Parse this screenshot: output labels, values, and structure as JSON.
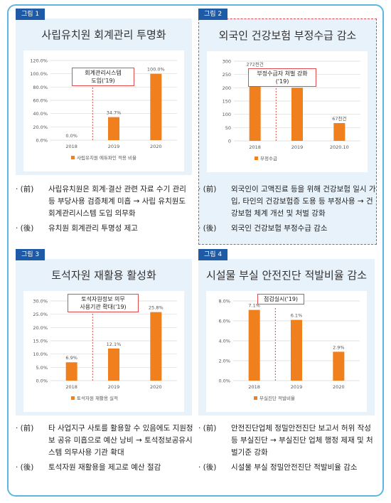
{
  "panels": [
    {
      "tag": "그림 1",
      "title": "사립유치원 회계관리 투명화",
      "annotation_lines": [
        "회계관리시스템",
        "도입('19)"
      ],
      "bullets": [
        {
          "mark": "· (前)",
          "text": "사립유치원은 회계·결산 관련 자료 수기 관리 등 부당사용 검증체계 미흡 → 사립 유치원도 회계관리시스템 도입 의무화"
        },
        {
          "mark": "· (後)",
          "text": "유치원 회계관리 투명성 제고"
        }
      ]
    },
    {
      "tag": "그림 2",
      "title": "외국인 건강보험 부정수급 감소",
      "annotation_lines": [
        "부정수급자 처벌 강화",
        "('19)"
      ],
      "bullets": [
        {
          "mark": "· (前)",
          "text": "외국인이 고액진료 등을 위해 건강보험 일시 가입, 타인의 건강보험증 도용 등 부정사용 → 건강보험 체계 개선 및 처벌 강화"
        },
        {
          "mark": "· (後)",
          "text": "외국인 건강보험 부정수급 감소"
        }
      ]
    },
    {
      "tag": "그림 3",
      "title": "토석자원 재활용 활성화",
      "annotation_lines": [
        "토석자원정보 의무",
        "사용기관 확대('19)"
      ],
      "bullets": [
        {
          "mark": "· (前)",
          "text": "타 사업지구 사토를 활용할 수 있음에도 지원정보 공유 미흡으로 예산 낭비 → 토석정보공유시스템 의무사용 기관 확대"
        },
        {
          "mark": "· (後)",
          "text": "토석자원 재활용을 제고로 예산 절감"
        }
      ]
    },
    {
      "tag": "그림 4",
      "title": "시설물 부실 안전진단 적발비율 감소",
      "annotation_lines": [
        "점검실시('19)"
      ],
      "bullets": [
        {
          "mark": "· (前)",
          "text": "안전진단업체 정밀안전진단 보고서 허위 작성 등 부실진단 → 부실진단 업체 행정 제재 및 처벌기준 강화"
        },
        {
          "mark": "· (後)",
          "text": "시설물 부실 정밀안전진단 적발비율 감소"
        }
      ]
    }
  ],
  "chart_data": [
    {
      "type": "bar",
      "categories": [
        "2018",
        "2019",
        "2020"
      ],
      "series": [
        {
          "name": "사립유치원 에듀파인 적용 비율",
          "values": [
            0.0,
            34.7,
            100.0
          ]
        }
      ],
      "data_labels": [
        "0.0%",
        "34.7%",
        "100.0%"
      ],
      "yticks": [
        "0.0%",
        "20.0%",
        "40.0%",
        "60.0%",
        "80.0%",
        "100.0%",
        "120.0%"
      ],
      "ylim": [
        0,
        120
      ],
      "color": "#f07f1e",
      "divider_after": 0,
      "legend": "bottom"
    },
    {
      "type": "bar",
      "categories": [
        "2018",
        "2019",
        "2020.10"
      ],
      "series": [
        {
          "name": "부정수급",
          "values": [
            272,
            200,
            67
          ]
        }
      ],
      "data_labels": [
        "272천건",
        "200천건",
        "67천건"
      ],
      "yticks": [
        "0",
        "50",
        "100",
        "150",
        "200",
        "250",
        "300"
      ],
      "ylim": [
        0,
        300
      ],
      "color": "#f07f1e",
      "divider_after": 0,
      "legend": "bottom"
    },
    {
      "type": "bar",
      "categories": [
        "2018",
        "2019",
        "2020"
      ],
      "series": [
        {
          "name": "토석자원 재활용 실적",
          "values": [
            6.9,
            12.1,
            25.8
          ]
        }
      ],
      "data_labels": [
        "6.9%",
        "12.1%",
        "25.8%"
      ],
      "yticks": [
        "0.0%",
        "5.0%",
        "10.0%",
        "15.0%",
        "20.0%",
        "25.0%",
        "30.0%"
      ],
      "ylim": [
        0,
        30
      ],
      "color": "#f07f1e",
      "divider_after": 0,
      "legend": "bottom"
    },
    {
      "type": "bar",
      "categories": [
        "2018",
        "2019",
        "2020"
      ],
      "series": [
        {
          "name": "부실진단 적발비율",
          "values": [
            7.1,
            6.1,
            2.9
          ]
        }
      ],
      "data_labels": [
        "7.1%",
        "6.1%",
        "2.9%"
      ],
      "yticks": [
        "0.0%",
        "2.0%",
        "4.0%",
        "6.0%",
        "8.0%"
      ],
      "ylim": [
        0,
        8
      ],
      "color": "#f07f1e",
      "divider_after": 0,
      "legend": "bottom"
    }
  ]
}
